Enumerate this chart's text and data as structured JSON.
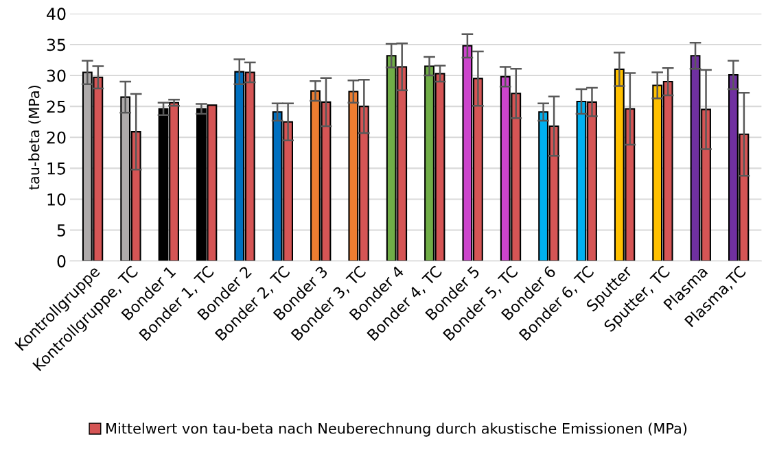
{
  "chart_data": {
    "type": "bar",
    "ylabel": "tau-beta (MPa)",
    "categories": [
      "Kontrollgruppe",
      "Kontrollgruppe, TC",
      "Bonder 1",
      "Bonder 1, TC",
      "Bonder 2",
      "Bonder 2, TC",
      "Bonder 3",
      "Bonder 3, TC",
      "Bonder 4",
      "Bonder 4, TC",
      "Bonder 5",
      "Bonder 5, TC",
      "Bonder 6",
      "Bonder 6, TC",
      "Sputter",
      "Sputter, TC",
      "Plasma",
      "Plasma,TC"
    ],
    "series": [
      {
        "colors": [
          "#aeaaaa",
          "#aeaaaa",
          "#000000",
          "#000000",
          "#0070c0",
          "#0070c0",
          "#ed7d31",
          "#ed7d31",
          "#70ad47",
          "#70ad47",
          "#cc44cc",
          "#cc44cc",
          "#00b0f0",
          "#00b0f0",
          "#ffc000",
          "#ffc000",
          "#7030a0",
          "#7030a0"
        ],
        "values": [
          30.5,
          26.5,
          24.6,
          24.6,
          30.6,
          24.1,
          27.5,
          27.4,
          33.2,
          31.5,
          34.8,
          29.8,
          24.1,
          25.8,
          31.0,
          28.4,
          33.2,
          30.1
        ],
        "errors": [
          1.9,
          2.5,
          1.0,
          0.8,
          2.0,
          1.4,
          1.6,
          1.8,
          1.9,
          1.5,
          1.9,
          1.6,
          1.4,
          2.0,
          2.7,
          2.1,
          2.1,
          2.3
        ]
      },
      {
        "name": "Mittelwert von tau-beta nach Neuberechnung durch akustische Emissionen (MPa)",
        "color": "#d55555",
        "values": [
          29.7,
          20.9,
          25.6,
          25.2,
          30.5,
          22.5,
          25.7,
          25.0,
          31.4,
          30.3,
          29.5,
          27.1,
          21.8,
          25.7,
          24.6,
          29.0,
          24.5,
          20.5
        ],
        "errors": [
          1.8,
          6.1,
          0.5,
          null,
          1.6,
          3.0,
          3.9,
          4.3,
          3.8,
          1.3,
          4.4,
          4.0,
          4.8,
          2.3,
          5.8,
          2.2,
          6.4,
          6.7
        ]
      }
    ],
    "ylim": [
      0,
      40
    ],
    "yticks": [
      0,
      5,
      10,
      15,
      20,
      25,
      30,
      35,
      40
    ],
    "grid": "y",
    "legend": "bottom"
  }
}
